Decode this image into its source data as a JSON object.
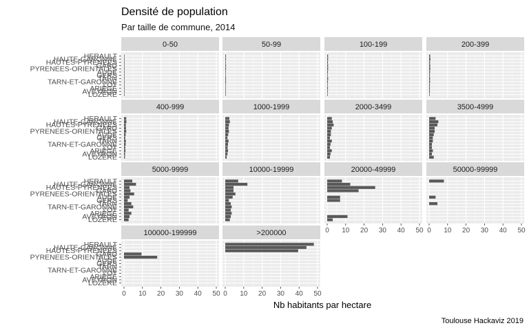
{
  "chart_data": {
    "type": "bar",
    "orientation": "horizontal",
    "title": "Densité de population",
    "subtitle": "Par taille de commune, 2014",
    "xlabel": "Nb habitants par hectare",
    "ylabel": "",
    "caption": "Toulouse Hackaviz 2019",
    "xlim": [
      0,
      50
    ],
    "x_ticks": [
      0,
      10,
      20,
      30,
      40,
      50
    ],
    "grid": true,
    "categories": [
      "HERAULT",
      "HAUTE-GARONNE",
      "HAUTES-PYRENEES",
      "GARD",
      "PYRENEES-ORIENTALES",
      "AUDE",
      "GERS",
      "TARN",
      "TARN-ET-GARONNE",
      "LOT",
      "ARIEGE",
      "AVEYRON",
      "LOZERE"
    ],
    "y_tick_labels_note": "labels overprinted in the original",
    "facets": [
      {
        "label": "0-50",
        "values": [
          0.3,
          0.3,
          0.2,
          0.3,
          0.3,
          0.3,
          0.2,
          0.3,
          0.3,
          0.2,
          0.2,
          0.2,
          0.1
        ]
      },
      {
        "label": "50-99",
        "values": [
          0.4,
          0.4,
          0.3,
          0.4,
          0.4,
          0.3,
          0.3,
          0.4,
          0.4,
          0.3,
          0.3,
          0.3,
          0.2
        ]
      },
      {
        "label": "100-199",
        "values": [
          0.5,
          0.5,
          0.4,
          0.5,
          0.5,
          0.4,
          0.3,
          0.5,
          0.4,
          0.3,
          0.4,
          0.3,
          0.3
        ]
      },
      {
        "label": "200-399",
        "values": [
          0.6,
          0.7,
          0.5,
          0.6,
          0.6,
          0.5,
          0.4,
          0.5,
          0.5,
          0.4,
          0.4,
          0.4,
          0.3
        ]
      },
      {
        "label": "400-999",
        "values": [
          1.2,
          1.3,
          1.0,
          1.1,
          1.2,
          0.9,
          0.7,
          1.0,
          0.9,
          0.7,
          0.8,
          0.6,
          0.5
        ]
      },
      {
        "label": "1000-1999",
        "values": [
          2.2,
          2.5,
          2.0,
          1.8,
          2.0,
          1.6,
          1.2,
          1.8,
          1.5,
          1.3,
          1.5,
          1.2,
          0.8
        ]
      },
      {
        "label": "2000-3499",
        "values": [
          2.5,
          3.0,
          3.5,
          2.5,
          2.0,
          2.0,
          1.5,
          2.5,
          1.8,
          1.5,
          2.5,
          1.8,
          1.5
        ]
      },
      {
        "label": "3500-4999",
        "values": [
          3.5,
          5.0,
          4.5,
          3.0,
          3.0,
          2.5,
          2.0,
          2.0,
          1.5,
          1.5,
          2.0,
          1.5,
          2.5
        ]
      },
      {
        "label": "5000-9999",
        "values": [
          4.5,
          6.5,
          3.0,
          3.5,
          5.5,
          3.0,
          2.0,
          4.0,
          5.0,
          2.5,
          4.0,
          3.0,
          2.5
        ]
      },
      {
        "label": "10000-19999",
        "values": [
          7.0,
          12.0,
          4.5,
          4.5,
          5.5,
          4.0,
          2.0,
          3.0,
          3.5,
          3.0,
          3.5,
          3.0,
          2.5
        ]
      },
      {
        "label": "20000-49999",
        "values": [
          8.0,
          12.5,
          26.0,
          17.0,
          0,
          7.0,
          7.0,
          0,
          0,
          0,
          0,
          11.0,
          3.0
        ]
      },
      {
        "label": "50000-99999",
        "values": [
          8.0,
          0,
          0,
          0,
          0,
          3.5,
          0,
          4.5,
          0,
          0,
          0,
          0,
          0
        ]
      },
      {
        "label": "100000-199999",
        "values": [
          0,
          0,
          0,
          9.5,
          18.0,
          0,
          0,
          0,
          0,
          0,
          0,
          0,
          0
        ]
      },
      {
        "label": ">200000",
        "values": [
          48.0,
          44.0,
          39.5,
          0,
          0,
          0,
          0,
          0,
          0,
          0,
          0,
          0,
          0
        ]
      }
    ]
  }
}
